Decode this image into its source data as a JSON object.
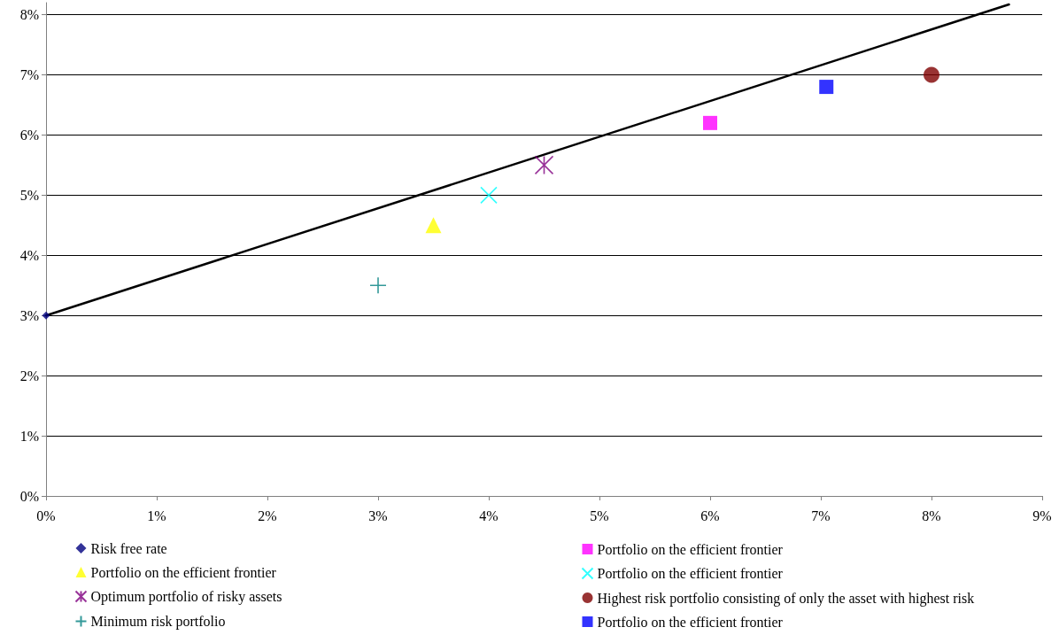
{
  "chart_data": {
    "type": "scatter",
    "xlim": [
      0,
      9
    ],
    "ylim": [
      0,
      8.2
    ],
    "xticks": [
      {
        "value": 0,
        "label": "0%"
      },
      {
        "value": 1,
        "label": "1%"
      },
      {
        "value": 2,
        "label": "2%"
      },
      {
        "value": 3,
        "label": "3%"
      },
      {
        "value": 4,
        "label": "4%"
      },
      {
        "value": 5,
        "label": "5%"
      },
      {
        "value": 6,
        "label": "6%"
      },
      {
        "value": 7,
        "label": "7%"
      },
      {
        "value": 8,
        "label": "8%"
      },
      {
        "value": 9,
        "label": "9%"
      }
    ],
    "yticks": [
      {
        "value": 0,
        "label": "0%"
      },
      {
        "value": 1,
        "label": "1%"
      },
      {
        "value": 2,
        "label": "2%"
      },
      {
        "value": 3,
        "label": "3%"
      },
      {
        "value": 4,
        "label": "4%"
      },
      {
        "value": 5,
        "label": "5%"
      },
      {
        "value": 6,
        "label": "6%"
      },
      {
        "value": 7,
        "label": "7%"
      },
      {
        "value": 8,
        "label": "8%"
      }
    ],
    "grid": "y",
    "legend": "bottom",
    "series": [
      {
        "name": "Risk free rate",
        "color": "#000080",
        "marker": "diamond",
        "x": [
          0
        ],
        "values": [
          3
        ]
      },
      {
        "name": "Portfolio on the efficient frontier",
        "color": "#ff00ff",
        "marker": "square",
        "x": [
          6
        ],
        "values": [
          6.2
        ]
      },
      {
        "name": "Portfolio on the efficient frontier",
        "color": "#ffff00",
        "marker": "triangle",
        "x": [
          3.5
        ],
        "values": [
          4.5
        ]
      },
      {
        "name": "Portfolio on the efficient frontier",
        "color": "#00ffff",
        "x": [
          4
        ],
        "values": [
          5
        ]
      },
      {
        "name": "Optimum portfolio of risky assets",
        "color": "#800080",
        "marker": "cross",
        "x": [
          4.5
        ],
        "values": [
          5.5
        ]
      },
      {
        "name": "Highest risk portfolio consisting of only the asset with highest risk",
        "color": "#800000",
        "marker": "circle",
        "x": [
          8
        ],
        "values": [
          7
        ]
      },
      {
        "name": "Minimum risk portfolio",
        "color": "#008080",
        "marker": "plus",
        "x": [
          3
        ],
        "values": [
          3.5
        ]
      },
      {
        "name": "Portfolio on the efficient frontier",
        "color": "#0000ff",
        "marker": "square",
        "x": [
          7.05
        ],
        "values": [
          6.8
        ]
      },
      {
        "type": "line",
        "color": "#000000",
        "marker": "none",
        "line_style": "solid",
        "x": [
          0,
          8.7
        ],
        "values": [
          3,
          8.17
        ]
      }
    ]
  }
}
